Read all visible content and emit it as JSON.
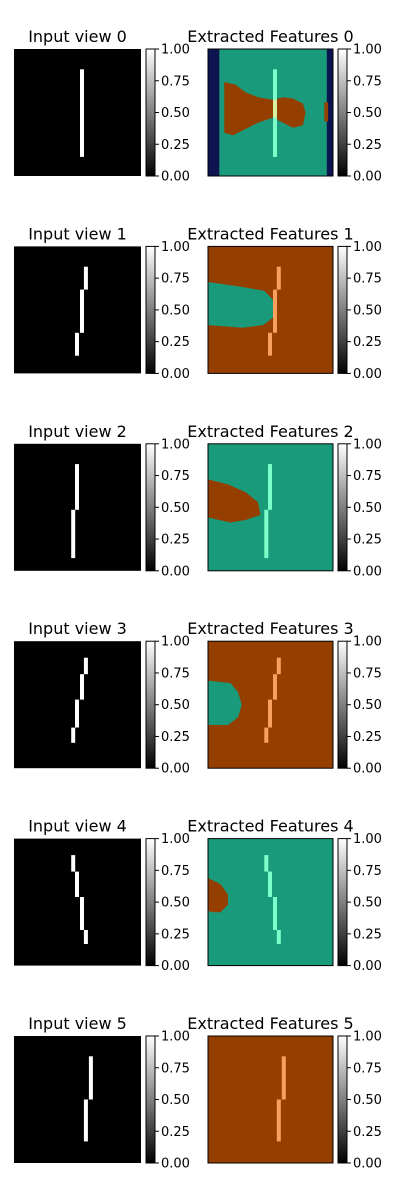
{
  "chart_data": {
    "type": "heatmap",
    "colorbar_ticks": [
      "0.00",
      "0.25",
      "0.50",
      "0.75",
      "1.00"
    ],
    "colors": {
      "input_background": "#000000",
      "input_stroke": "#ffffff",
      "feature_teal": "#199a7a",
      "feature_brown": "#943f00",
      "feature_navy": "#0d1550",
      "stroke_on_teal": "#7effc9",
      "stroke_on_brown": "#f9a05f",
      "stroke_mixed": "#d8f0a0"
    },
    "rows": [
      {
        "input_title": "Input view 0",
        "feature_title": "Extracted Features 0",
        "background": "teal",
        "stroke": [
          [
            0.52,
            0.16,
            0.85
          ]
        ]
      },
      {
        "input_title": "Input view 1",
        "feature_title": "Extracted Features 1",
        "background": "brown",
        "stroke": [
          [
            0.55,
            0.16,
            0.34
          ],
          [
            0.52,
            0.34,
            0.68
          ],
          [
            0.48,
            0.68,
            0.86
          ]
        ]
      },
      {
        "input_title": "Input view 2",
        "feature_title": "Extracted Features 2",
        "background": "teal",
        "stroke": [
          [
            0.48,
            0.16,
            0.52
          ],
          [
            0.45,
            0.52,
            0.9
          ]
        ]
      },
      {
        "input_title": "Input view 3",
        "feature_title": "Extracted Features 3",
        "background": "brown",
        "stroke": [
          [
            0.55,
            0.13,
            0.26
          ],
          [
            0.52,
            0.26,
            0.46
          ],
          [
            0.48,
            0.46,
            0.68
          ],
          [
            0.45,
            0.68,
            0.8
          ]
        ]
      },
      {
        "input_title": "Input view 4",
        "feature_title": "Extracted Features 4",
        "background": "teal",
        "stroke": [
          [
            0.45,
            0.13,
            0.26
          ],
          [
            0.48,
            0.26,
            0.46
          ],
          [
            0.52,
            0.46,
            0.72
          ],
          [
            0.55,
            0.72,
            0.83
          ]
        ]
      },
      {
        "input_title": "Input view 5",
        "feature_title": "Extracted Features 5",
        "background": "brown",
        "stroke": [
          [
            0.59,
            0.16,
            0.5
          ],
          [
            0.55,
            0.5,
            0.83
          ]
        ]
      }
    ]
  }
}
